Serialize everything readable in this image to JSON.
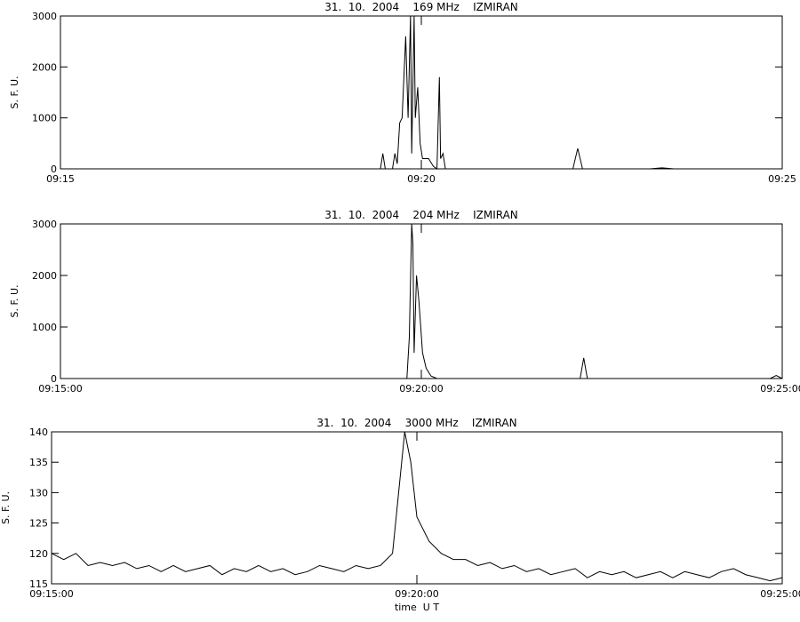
{
  "chart_data": [
    {
      "type": "line",
      "title": "31.  10.  2004    169 MHz    IZMIRAN",
      "y_label": "S. F. U.",
      "xlim": [
        "09:15:00",
        "09:25:00"
      ],
      "xticks": [
        {
          "value": "09:15:00",
          "label": "09:15"
        },
        {
          "value": "09:20:00",
          "label": "09:20"
        },
        {
          "value": "09:25:00",
          "label": "09:25"
        }
      ],
      "ylim": [
        0,
        3000
      ],
      "yticks": [
        0,
        1000,
        2000,
        3000
      ],
      "color": "#000000",
      "x": [
        "09:15:00",
        "09:19:26",
        "09:19:28",
        "09:19:30",
        "09:19:36",
        "09:19:38",
        "09:19:40",
        "09:19:42",
        "09:19:44",
        "09:19:47",
        "09:19:49",
        "09:19:51",
        "09:19:52",
        "09:19:54",
        "09:19:55",
        "09:19:57",
        "09:19:59",
        "09:20:01",
        "09:20:06",
        "09:20:10",
        "09:20:13",
        "09:20:15",
        "09:20:16",
        "09:20:18",
        "09:20:20",
        "09:22:06",
        "09:22:10",
        "09:22:14",
        "09:23:10",
        "09:23:20",
        "09:23:30",
        "09:25:00"
      ],
      "values": [
        0,
        0,
        300,
        0,
        0,
        300,
        100,
        900,
        1000,
        2600,
        1000,
        3000,
        300,
        3000,
        1000,
        1600,
        500,
        200,
        200,
        50,
        0,
        1800,
        200,
        300,
        0,
        0,
        400,
        0,
        0,
        20,
        0,
        0
      ]
    },
    {
      "type": "line",
      "title": "31.  10.  2004    204 MHz    IZMIRAN",
      "y_label": "S. F. U.",
      "xlim": [
        "09:15:00",
        "09:25:00"
      ],
      "xticks": [
        "09:15:00",
        "09:20:00",
        "09:25:00"
      ],
      "ylim": [
        0,
        3000
      ],
      "yticks": [
        0,
        1000,
        2000,
        3000
      ],
      "color": "#000000",
      "x": [
        "09:15:00",
        "09:19:48",
        "09:19:50",
        "09:19:52",
        "09:19:53",
        "09:19:54",
        "09:19:56",
        "09:19:58",
        "09:20:01",
        "09:20:04",
        "09:20:08",
        "09:20:13",
        "09:22:12",
        "09:22:15",
        "09:22:18",
        "09:24:50",
        "09:24:55",
        "09:25:00"
      ],
      "values": [
        0,
        0,
        800,
        3000,
        2600,
        500,
        2000,
        1500,
        500,
        200,
        50,
        0,
        0,
        400,
        0,
        0,
        60,
        0
      ]
    },
    {
      "type": "line",
      "title": "31.  10.  2004    3000 MHz    IZMIRAN",
      "y_label": "S. F. U.",
      "x_label": "time  U T",
      "xlim": [
        "09:15:00",
        "09:25:00"
      ],
      "xticks": [
        "09:15:00",
        "09:20:00",
        "09:25:00"
      ],
      "ylim": [
        115,
        140
      ],
      "yticks": [
        115,
        120,
        125,
        130,
        135,
        140
      ],
      "color": "#000000",
      "x": [
        "09:15:00",
        "09:15:10",
        "09:15:20",
        "09:15:30",
        "09:15:40",
        "09:15:50",
        "09:16:00",
        "09:16:10",
        "09:16:20",
        "09:16:30",
        "09:16:40",
        "09:16:50",
        "09:17:00",
        "09:17:10",
        "09:17:20",
        "09:17:30",
        "09:17:40",
        "09:17:50",
        "09:18:00",
        "09:18:10",
        "09:18:20",
        "09:18:30",
        "09:18:40",
        "09:18:50",
        "09:19:00",
        "09:19:10",
        "09:19:20",
        "09:19:30",
        "09:19:40",
        "09:19:45",
        "09:19:50",
        "09:19:55",
        "09:20:00",
        "09:20:10",
        "09:20:20",
        "09:20:30",
        "09:20:40",
        "09:20:50",
        "09:21:00",
        "09:21:10",
        "09:21:20",
        "09:21:30",
        "09:21:40",
        "09:21:50",
        "09:22:00",
        "09:22:10",
        "09:22:20",
        "09:22:30",
        "09:22:40",
        "09:22:50",
        "09:23:00",
        "09:23:10",
        "09:23:20",
        "09:23:30",
        "09:23:40",
        "09:23:50",
        "09:24:00",
        "09:24:10",
        "09:24:20",
        "09:24:30",
        "09:24:40",
        "09:24:50",
        "09:25:00"
      ],
      "values": [
        120,
        119,
        120,
        118,
        118.5,
        118,
        118.5,
        117.5,
        118,
        117,
        118,
        117,
        117.5,
        118,
        116.5,
        117.5,
        117,
        118,
        117,
        117.5,
        116.5,
        117,
        118,
        117.5,
        117,
        118,
        117.5,
        118,
        120,
        130,
        140,
        135,
        126,
        122,
        120,
        119,
        119,
        118,
        118.5,
        117.5,
        118,
        117,
        117.5,
        116.5,
        117,
        117.5,
        116,
        117,
        116.5,
        117,
        116,
        116.5,
        117,
        116,
        117,
        116.5,
        116,
        117,
        117.5,
        116.5,
        116,
        115.5,
        116
      ]
    }
  ]
}
